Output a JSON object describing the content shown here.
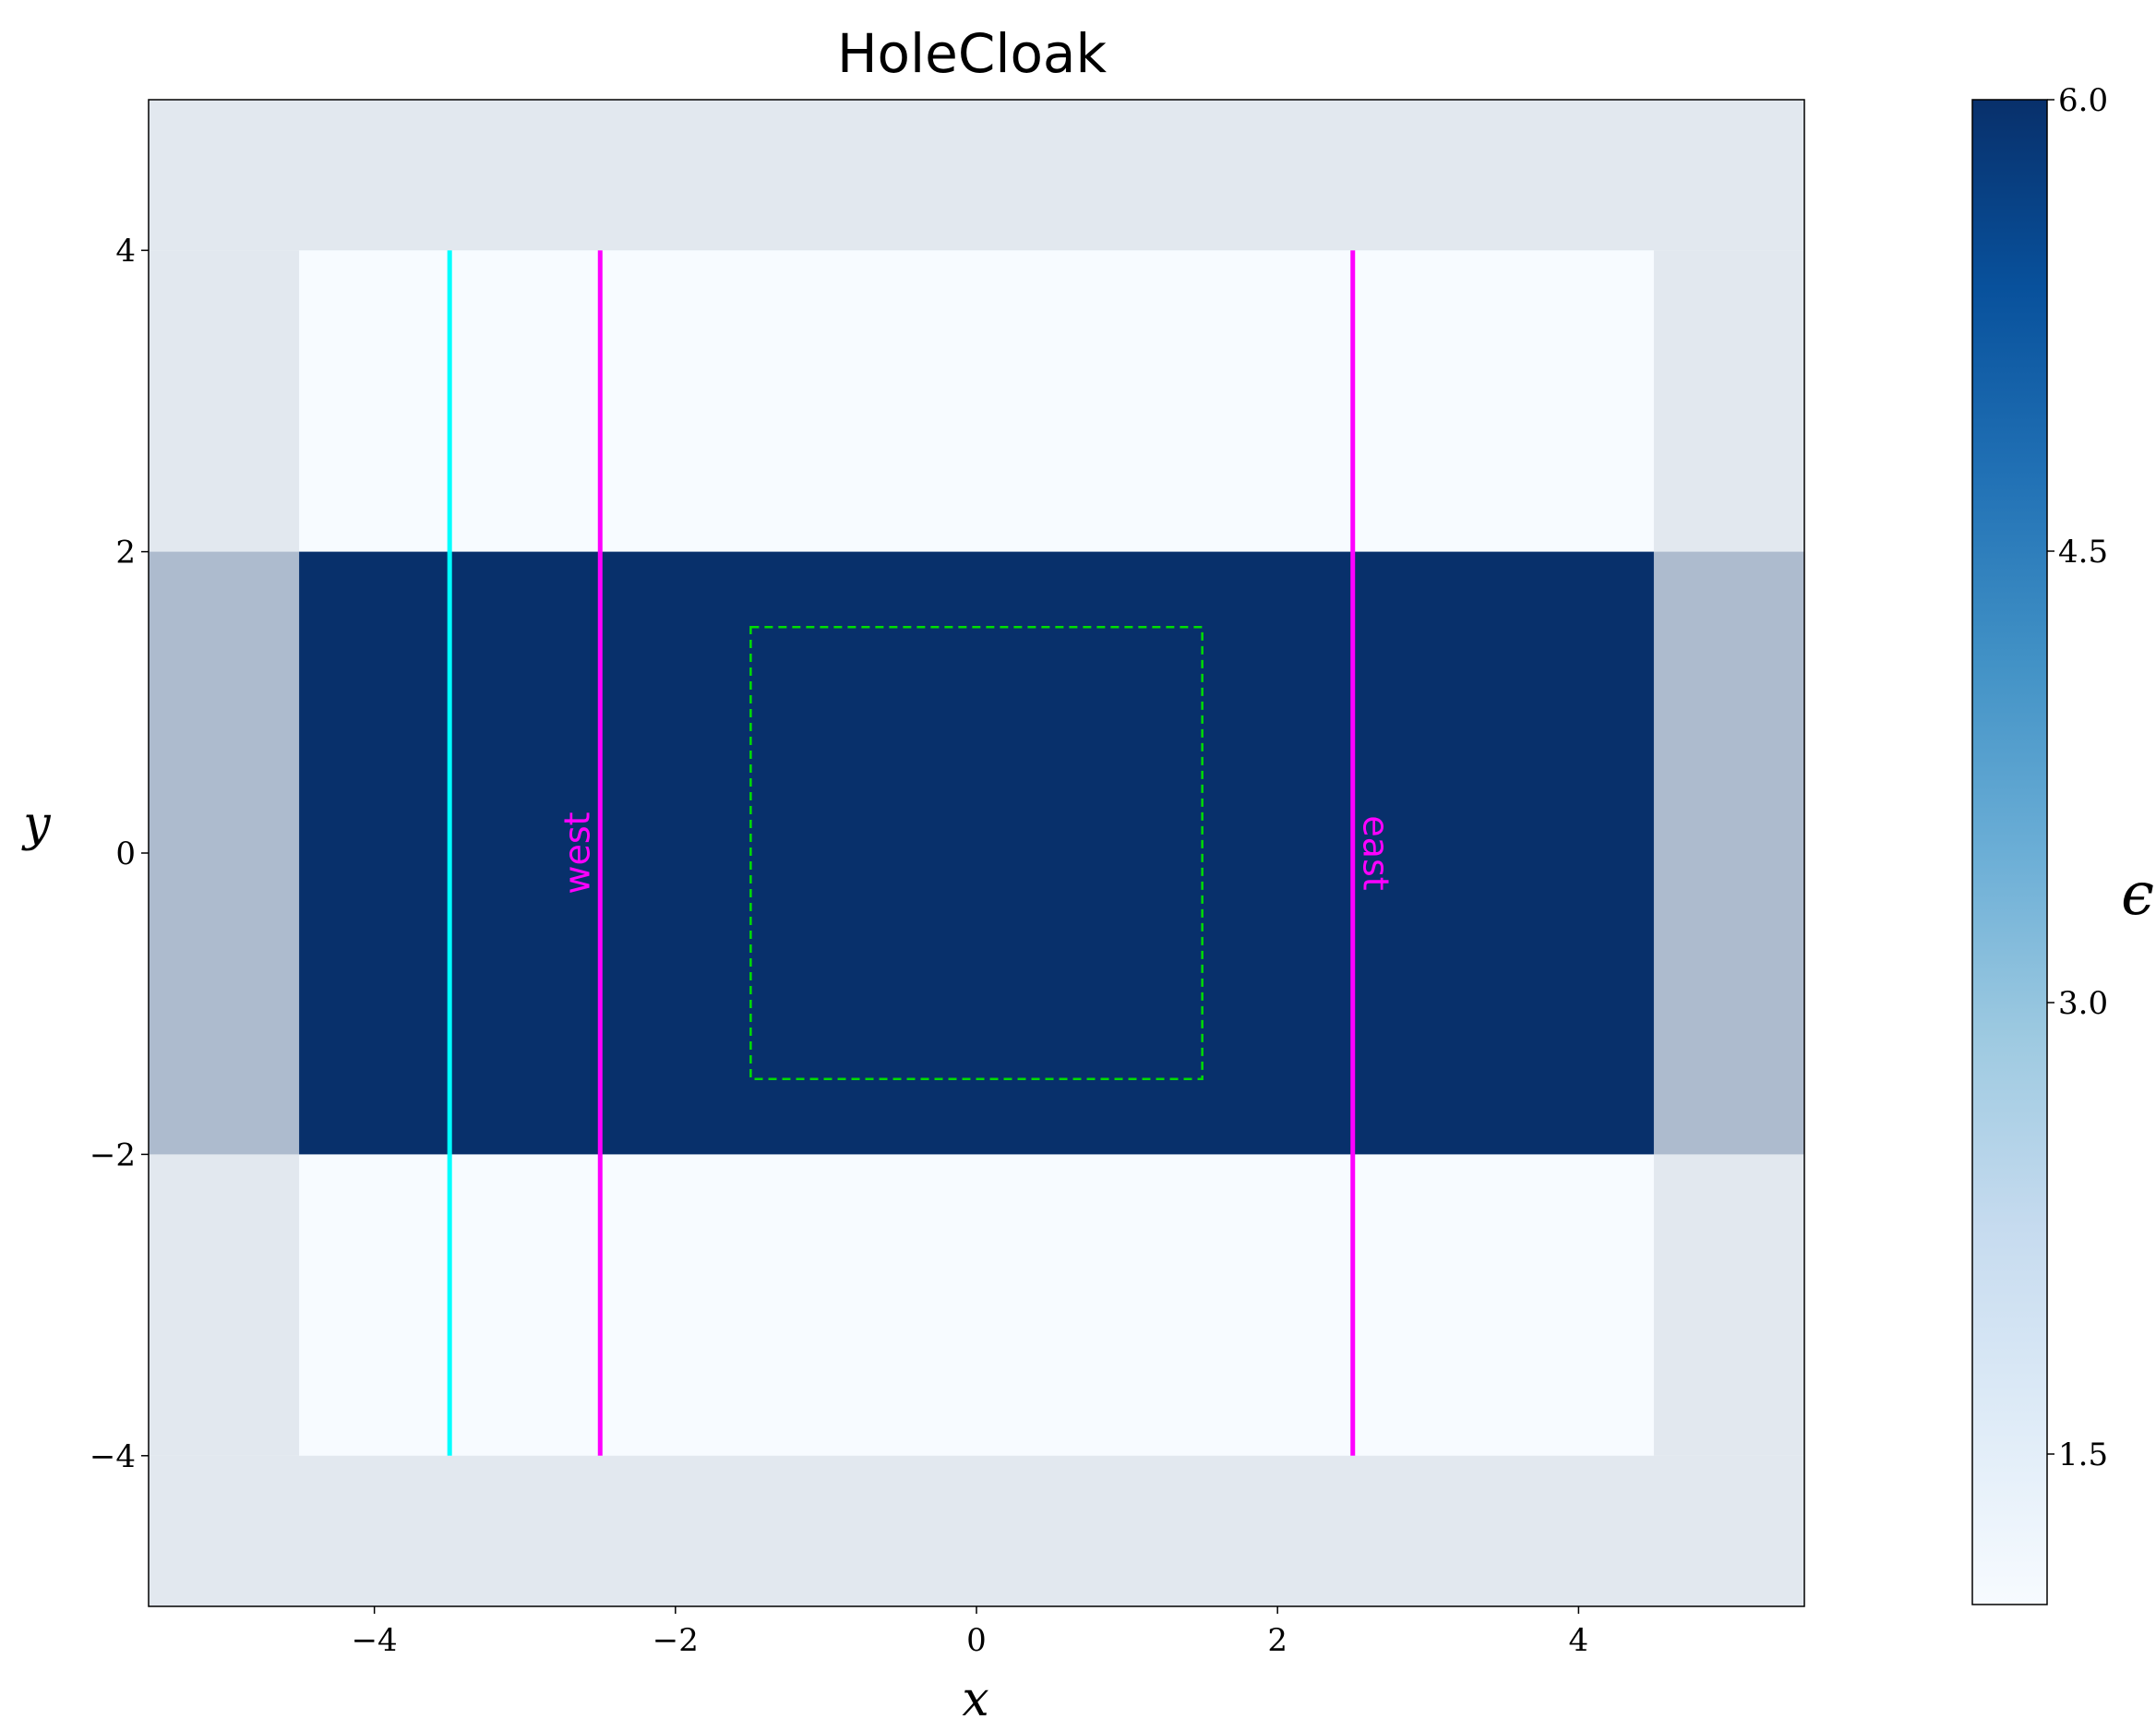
{
  "chart_data": {
    "type": "heatmap",
    "title": "HoleCloak",
    "xlabel": "x",
    "ylabel": "y",
    "xlim": [
      -5.5,
      5.5
    ],
    "ylim": [
      -5,
      5
    ],
    "xticks": [
      -4,
      -2,
      0,
      2,
      4
    ],
    "xtick_labels": [
      "−4",
      "−2",
      "0",
      "2",
      "4"
    ],
    "yticks": [
      -4,
      -2,
      0,
      2,
      4
    ],
    "ytick_labels": [
      "−4",
      "−2",
      "0",
      "2",
      "4"
    ],
    "grid": false,
    "colormap": "Blues",
    "colorbar": {
      "label": "ϵ",
      "range": [
        1.0,
        6.0
      ],
      "ticks": [
        1.5,
        3.0,
        4.5,
        6.0
      ],
      "tick_labels": [
        "1.5",
        "3.0",
        "4.5",
        "6.0"
      ]
    },
    "permittivity_regions": [
      {
        "x": [
          -4.5,
          4.5
        ],
        "y": [
          -4,
          4
        ],
        "epsilon": 1.0
      },
      {
        "x": [
          -5.5,
          5.5
        ],
        "y": [
          -2,
          2
        ],
        "epsilon": 6.0
      }
    ],
    "pml_overlay": {
      "x": [
        -4.5,
        4.5
      ],
      "y": [
        -4,
        4
      ],
      "color": "#dde3ea",
      "outside_opacity": 0.78
    },
    "lines": [
      {
        "x": -3.5,
        "y": [
          -4,
          4
        ],
        "color": "#00ffff"
      },
      {
        "x": -2.5,
        "y": [
          -4,
          4
        ],
        "color": "#ff00ff",
        "label": "west"
      },
      {
        "x": 2.5,
        "y": [
          -4,
          4
        ],
        "color": "#ff00ff",
        "label": "east"
      }
    ],
    "dashed_box": {
      "x": [
        -1.5,
        1.5
      ],
      "y": [
        -1.5,
        1.5
      ],
      "color": "#00dd00"
    }
  }
}
